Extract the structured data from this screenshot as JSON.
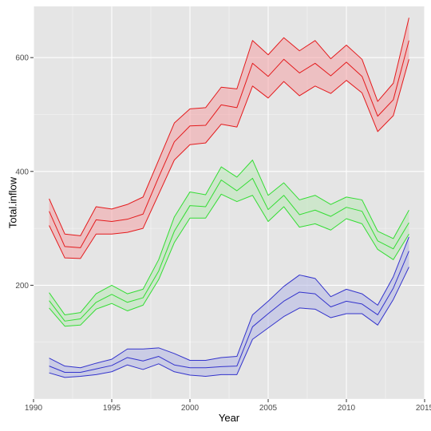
{
  "chart_data": {
    "type": "line",
    "title": "",
    "xlabel": "Year",
    "ylabel": "Total.inflow",
    "xlim": [
      1990,
      2015
    ],
    "ylim": [
      0,
      690
    ],
    "x_ticks": [
      1990,
      1995,
      2000,
      2005,
      2010,
      2015
    ],
    "y_ticks": [
      200,
      400,
      600
    ],
    "grid": true,
    "legend": "none",
    "panel_color": "#e5e5e5",
    "grid_color": "#ffffff",
    "x": [
      1991,
      1992,
      1993,
      1994,
      1995,
      1996,
      1997,
      1998,
      1999,
      2000,
      2001,
      2002,
      2003,
      2004,
      2005,
      2006,
      2007,
      2008,
      2009,
      2010,
      2011,
      2012,
      2013,
      2014
    ],
    "series": [
      {
        "color": "#e41a1c",
        "fill": "#f4a3a5",
        "lower": [
          305,
          248,
          247,
          290,
          290,
          293,
          300,
          360,
          420,
          447,
          450,
          483,
          478,
          550,
          529,
          558,
          533,
          550,
          537,
          560,
          538,
          470,
          498,
          597
        ],
        "mid": [
          330,
          268,
          266,
          315,
          312,
          316,
          325,
          390,
          452,
          480,
          481,
          517,
          512,
          590,
          567,
          597,
          573,
          590,
          568,
          592,
          567,
          497,
          526,
          630
        ],
        "upper": [
          352,
          290,
          287,
          338,
          334,
          342,
          355,
          420,
          485,
          510,
          512,
          548,
          545,
          630,
          605,
          635,
          612,
          630,
          598,
          622,
          597,
          523,
          555,
          670
        ]
      },
      {
        "color": "#33dd33",
        "fill": "#bce8b8",
        "lower": [
          160,
          128,
          130,
          158,
          168,
          155,
          165,
          210,
          275,
          318,
          318,
          360,
          347,
          358,
          312,
          338,
          302,
          308,
          297,
          317,
          308,
          263,
          245,
          290
        ],
        "mid": [
          173,
          137,
          141,
          170,
          184,
          170,
          178,
          225,
          295,
          340,
          338,
          385,
          366,
          388,
          333,
          358,
          324,
          332,
          321,
          337,
          330,
          278,
          264,
          310
        ],
        "upper": [
          187,
          148,
          152,
          185,
          200,
          185,
          193,
          245,
          320,
          364,
          359,
          408,
          390,
          420,
          358,
          380,
          350,
          358,
          342,
          355,
          350,
          295,
          282,
          332
        ]
      },
      {
        "color": "#3333cc",
        "fill": "#b4b8e6",
        "lower": [
          46,
          38,
          40,
          43,
          48,
          60,
          52,
          62,
          48,
          42,
          40,
          43,
          43,
          105,
          125,
          145,
          160,
          158,
          143,
          150,
          150,
          130,
          175,
          232
        ],
        "mid": [
          58,
          47,
          47,
          53,
          59,
          73,
          67,
          75,
          60,
          55,
          55,
          57,
          58,
          127,
          150,
          172,
          188,
          185,
          162,
          172,
          167,
          148,
          195,
          260
        ],
        "upper": [
          72,
          58,
          55,
          63,
          70,
          88,
          88,
          90,
          80,
          68,
          68,
          73,
          75,
          148,
          172,
          198,
          218,
          212,
          180,
          193,
          185,
          165,
          215,
          285
        ]
      }
    ]
  }
}
